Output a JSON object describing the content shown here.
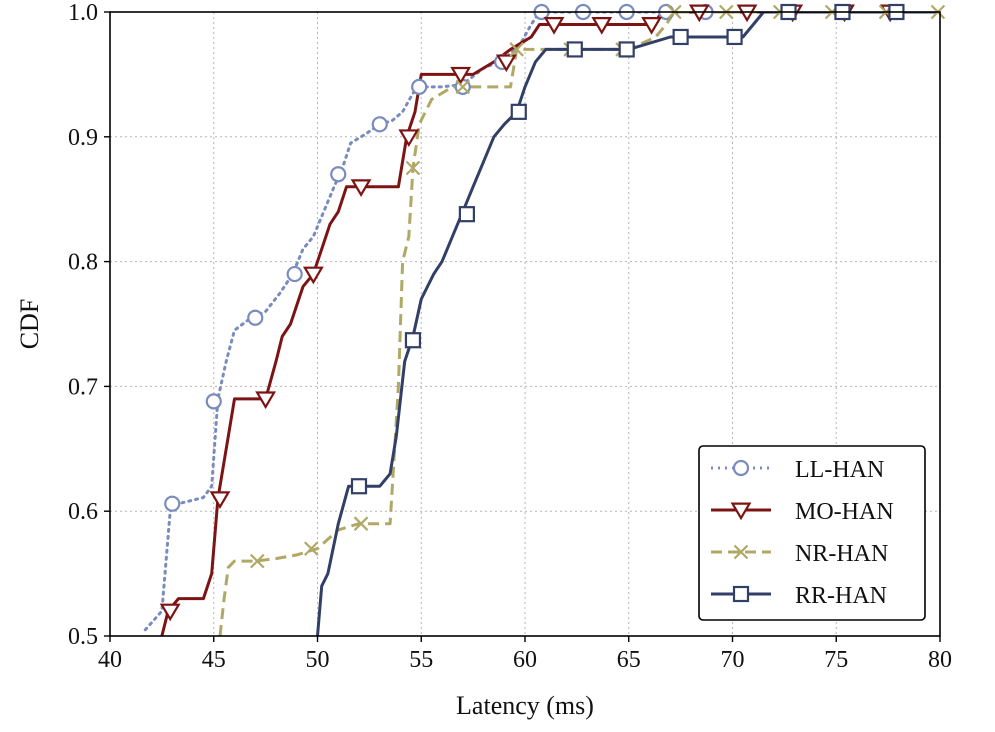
{
  "chart_data": {
    "type": "line",
    "title": "",
    "xlabel": "Latency (ms)",
    "ylabel": "CDF",
    "xlim": [
      40,
      80
    ],
    "ylim": [
      0.5,
      1.0
    ],
    "xticks": [
      40,
      45,
      50,
      55,
      60,
      65,
      70,
      75,
      80
    ],
    "yticks": [
      0.5,
      0.6,
      0.7,
      0.8,
      0.9,
      1.0
    ],
    "xtick_labels": [
      "40",
      "45",
      "50",
      "55",
      "60",
      "65",
      "70",
      "75",
      "80"
    ],
    "ytick_labels": [
      "0.5",
      "0.6",
      "0.7",
      "0.8",
      "0.9",
      "1.0"
    ],
    "grid": true,
    "legend_position": "bottom-right",
    "series": [
      {
        "name": "LL-HAN",
        "color": "#7a8bbd",
        "line_style": "dotted",
        "marker": "circle",
        "x": [
          41.7,
          42.5,
          42.9,
          43.3,
          44.5,
          44.9,
          45.2,
          45.6,
          46.0,
          46.8,
          47.5,
          48.2,
          48.8,
          49.3,
          49.8,
          50.3,
          50.8,
          51.2,
          51.6,
          52.3,
          53.0,
          53.6,
          54.1,
          54.6,
          55.0,
          56.0,
          57.0,
          58.0,
          59.0,
          59.8,
          60.3,
          60.7,
          61.5,
          63.0,
          65.0,
          66.8,
          68.7,
          70.0,
          73.0,
          75.0,
          80.0
        ],
        "y": [
          0.505,
          0.52,
          0.6,
          0.606,
          0.611,
          0.62,
          0.69,
          0.72,
          0.745,
          0.755,
          0.76,
          0.775,
          0.79,
          0.81,
          0.82,
          0.84,
          0.86,
          0.875,
          0.895,
          0.902,
          0.91,
          0.913,
          0.92,
          0.935,
          0.94,
          0.94,
          0.942,
          0.955,
          0.962,
          0.975,
          0.99,
          1.0,
          1.0,
          1.0,
          1.0,
          1.0,
          1.0,
          1.0,
          1.0,
          1.0,
          1.0
        ],
        "marker_x": [
          43.0,
          45.0,
          47.0,
          48.9,
          51.0,
          53.0,
          54.9,
          57.0,
          58.9,
          60.8,
          62.8,
          64.9,
          66.8,
          68.7
        ],
        "marker_y": [
          0.606,
          0.688,
          0.755,
          0.79,
          0.87,
          0.91,
          0.94,
          0.94,
          0.96,
          1.0,
          1.0,
          1.0,
          1.0,
          1.0
        ]
      },
      {
        "name": "MO-HAN",
        "color": "#7d1414",
        "line_style": "solid",
        "marker": "triangle-down",
        "x": [
          42.5,
          42.8,
          43.3,
          44.5,
          44.9,
          45.2,
          45.7,
          46.0,
          46.5,
          47.5,
          48.0,
          48.3,
          48.7,
          49.3,
          49.8,
          50.2,
          50.6,
          51.0,
          51.4,
          52.0,
          53.0,
          53.9,
          54.3,
          54.7,
          55.0,
          56.0,
          57.5,
          58.5,
          59.3,
          59.8,
          60.3,
          60.7,
          62.0,
          64.0,
          66.2,
          66.6,
          67.0,
          68.0,
          70.0,
          73.0,
          80.0
        ],
        "y": [
          0.5,
          0.52,
          0.53,
          0.53,
          0.55,
          0.61,
          0.66,
          0.69,
          0.69,
          0.69,
          0.72,
          0.74,
          0.75,
          0.78,
          0.79,
          0.81,
          0.83,
          0.84,
          0.86,
          0.86,
          0.86,
          0.86,
          0.9,
          0.92,
          0.95,
          0.95,
          0.95,
          0.96,
          0.97,
          0.975,
          0.98,
          0.99,
          0.99,
          0.99,
          0.99,
          1.0,
          1.0,
          1.0,
          1.0,
          1.0,
          1.0
        ],
        "marker_x": [
          42.9,
          45.3,
          47.5,
          49.8,
          52.1,
          54.4,
          56.9,
          59.1,
          61.4,
          63.7,
          66.1,
          68.4,
          70.7,
          72.9,
          75.4,
          77.6
        ],
        "marker_y": [
          0.52,
          0.61,
          0.69,
          0.79,
          0.86,
          0.9,
          0.95,
          0.96,
          0.99,
          0.99,
          0.99,
          1.0,
          1.0,
          1.0,
          1.0,
          1.0
        ]
      },
      {
        "name": "NR-HAN",
        "color": "#b0a865",
        "line_style": "dashed",
        "marker": "x",
        "x": [
          45.3,
          45.5,
          45.7,
          46.0,
          47.0,
          48.0,
          49.0,
          50.0,
          51.0,
          52.0,
          53.0,
          53.5,
          53.9,
          54.1,
          54.4,
          54.6,
          54.9,
          55.5,
          56.5,
          57.5,
          58.5,
          59.3,
          59.6,
          60.0,
          61.0,
          63.0,
          65.0,
          66.3,
          66.8,
          67.2,
          68.0,
          70.0,
          73.0,
          80.0
        ],
        "y": [
          0.5,
          0.53,
          0.555,
          0.56,
          0.56,
          0.562,
          0.565,
          0.57,
          0.585,
          0.59,
          0.59,
          0.59,
          0.7,
          0.8,
          0.82,
          0.875,
          0.91,
          0.93,
          0.94,
          0.94,
          0.94,
          0.94,
          0.97,
          0.97,
          0.97,
          0.97,
          0.97,
          0.98,
          0.99,
          1.0,
          1.0,
          1.0,
          1.0,
          1.0
        ],
        "marker_x": [
          47.1,
          49.7,
          52.1,
          54.6,
          57.0,
          59.6,
          62.2,
          64.7,
          67.2,
          69.7,
          72.3,
          74.8,
          77.4,
          79.9
        ],
        "marker_y": [
          0.56,
          0.57,
          0.59,
          0.875,
          0.94,
          0.97,
          0.97,
          0.97,
          1.0,
          1.0,
          1.0,
          1.0,
          1.0,
          1.0
        ]
      },
      {
        "name": "RR-HAN",
        "color": "#323f66",
        "line_style": "solid",
        "marker": "square",
        "x": [
          50.0,
          50.2,
          50.5,
          51.0,
          51.5,
          52.0,
          53.0,
          53.5,
          53.8,
          54.2,
          54.6,
          55.0,
          55.6,
          56.0,
          56.5,
          57.0,
          57.5,
          58.0,
          58.5,
          59.0,
          59.6,
          60.0,
          60.5,
          61.0,
          62.0,
          64.0,
          65.0,
          67.0,
          69.0,
          70.5,
          71.0,
          71.5,
          72.0,
          75.0,
          80.0
        ],
        "y": [
          0.5,
          0.54,
          0.55,
          0.59,
          0.62,
          0.62,
          0.62,
          0.63,
          0.66,
          0.72,
          0.74,
          0.77,
          0.79,
          0.8,
          0.82,
          0.84,
          0.86,
          0.88,
          0.9,
          0.91,
          0.92,
          0.94,
          0.96,
          0.97,
          0.97,
          0.97,
          0.97,
          0.98,
          0.98,
          0.98,
          0.99,
          1.0,
          1.0,
          1.0,
          1.0
        ],
        "marker_x": [
          52.0,
          54.6,
          57.2,
          59.7,
          62.4,
          64.9,
          67.5,
          70.1,
          72.7,
          75.3,
          77.9
        ],
        "marker_y": [
          0.62,
          0.737,
          0.838,
          0.92,
          0.97,
          0.97,
          0.98,
          0.98,
          1.0,
          1.0,
          1.0
        ]
      }
    ]
  }
}
